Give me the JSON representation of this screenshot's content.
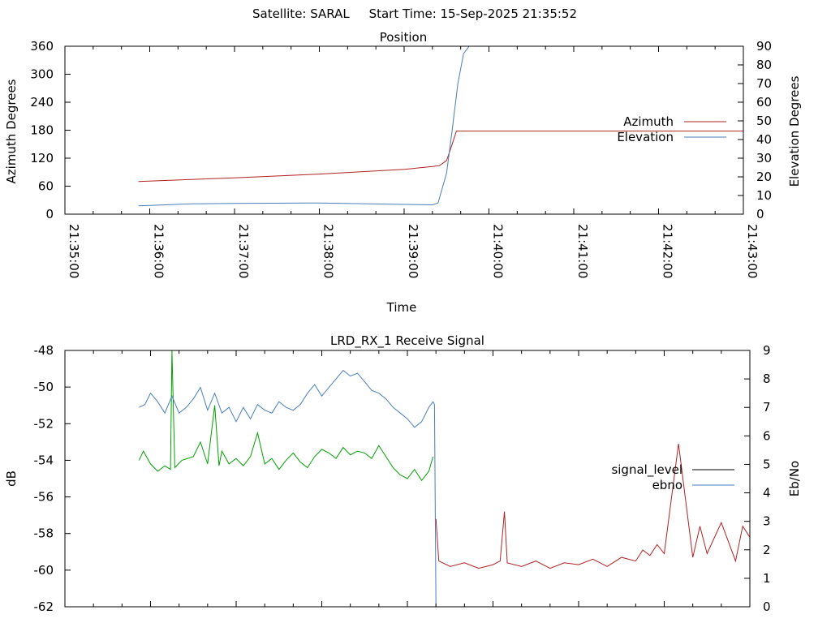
{
  "header": {
    "text": "Satellite: SARAL     Start Time: 15-Sep-2025 21:35:52"
  },
  "chart_data": [
    {
      "type": "line",
      "title": "Position",
      "xlabel": "Time",
      "ylabel": "Azimuth Degrees",
      "y2label": "Elevation Degrees",
      "xlim": [
        "21:35:00",
        "21:43:00"
      ],
      "ylim": [
        0,
        360
      ],
      "y2lim": [
        0,
        90
      ],
      "x_ticks": [
        "21:35:00",
        "21:36:00",
        "21:37:00",
        "21:38:00",
        "21:39:00",
        "21:40:00",
        "21:41:00",
        "21:42:00",
        "21:43:00"
      ],
      "y_ticks": [
        0,
        60,
        120,
        180,
        240,
        300,
        360
      ],
      "y2_ticks": [
        0,
        10,
        20,
        30,
        40,
        50,
        60,
        70,
        80,
        90
      ],
      "legend_position": "right",
      "series": [
        {
          "name": "Azimuth",
          "axis": "left",
          "color": "#b22222",
          "x": [
            "21:35:52",
            "21:37:00",
            "21:38:00",
            "21:39:00",
            "21:39:20",
            "21:39:25",
            "21:39:30",
            "21:39:34",
            "21:39:37",
            "21:43:00"
          ],
          "y": [
            70,
            78,
            86,
            96,
            102,
            104,
            115,
            150,
            178,
            178
          ]
        },
        {
          "name": "Elevation",
          "axis": "right",
          "color": "#4a7ebb",
          "x": [
            "21:35:52",
            "21:36:30",
            "21:37:00",
            "21:38:00",
            "21:38:30",
            "21:39:00",
            "21:39:20",
            "21:39:24",
            "21:39:30",
            "21:39:34",
            "21:39:38",
            "21:39:42",
            "21:39:46"
          ],
          "y": [
            4.5,
            5.5,
            5.8,
            6.0,
            5.6,
            5.2,
            5.0,
            6,
            22,
            45,
            70,
            86,
            90
          ]
        }
      ]
    },
    {
      "type": "line",
      "title": "LRD_RX_1 Receive Signal",
      "xlabel": "",
      "ylabel": "dB",
      "y2label": "Eb/No",
      "xlim": [
        "21:35:00",
        "21:43:00"
      ],
      "ylim": [
        -62,
        -48
      ],
      "y2lim": [
        0,
        9
      ],
      "y_ticks": [
        -62,
        -60,
        -58,
        -56,
        -54,
        -52,
        -50,
        -48
      ],
      "y2_ticks": [
        0,
        1,
        2,
        3,
        4,
        5,
        6,
        7,
        8,
        9
      ],
      "legend_position": "right",
      "series": [
        {
          "name": "signal_level",
          "axis": "left",
          "color": "#00a000",
          "x": [
            "21:35:52",
            "21:35:55",
            "21:36:00",
            "21:36:05",
            "21:36:10",
            "21:36:14",
            "21:36:15",
            "21:36:17",
            "21:36:22",
            "21:36:30",
            "21:36:35",
            "21:36:40",
            "21:36:45",
            "21:36:48",
            "21:36:50",
            "21:36:55",
            "21:37:00",
            "21:37:05",
            "21:37:10",
            "21:37:15",
            "21:37:20",
            "21:37:25",
            "21:37:30",
            "21:37:35",
            "21:37:40",
            "21:37:45",
            "21:37:50",
            "21:37:55",
            "21:38:00",
            "21:38:05",
            "21:38:10",
            "21:38:15",
            "21:38:20",
            "21:38:25",
            "21:38:30",
            "21:38:35",
            "21:38:40",
            "21:38:45",
            "21:38:50",
            "21:38:55",
            "21:39:00",
            "21:39:05",
            "21:39:10",
            "21:39:15",
            "21:39:18"
          ],
          "y": [
            -54.0,
            -53.5,
            -54.2,
            -54.6,
            -54.3,
            -54.5,
            -48.0,
            -54.4,
            -54.0,
            -53.8,
            -53.0,
            -54.2,
            -51.0,
            -54.3,
            -53.5,
            -54.2,
            -53.9,
            -54.3,
            -53.8,
            -52.5,
            -54.2,
            -53.9,
            -54.5,
            -54.0,
            -53.6,
            -54.1,
            -54.4,
            -53.8,
            -53.4,
            -53.6,
            -53.9,
            -53.3,
            -53.7,
            -53.5,
            -53.6,
            -53.9,
            -53.2,
            -53.8,
            -54.4,
            -54.8,
            -55.0,
            -54.5,
            -55.1,
            -54.6,
            -53.8
          ]
        },
        {
          "name": "ebno",
          "axis": "right",
          "color": "#4a7ebb",
          "x": [
            "21:35:52",
            "21:35:56",
            "21:36:00",
            "21:36:05",
            "21:36:10",
            "21:36:15",
            "21:36:20",
            "21:36:25",
            "21:36:30",
            "21:36:35",
            "21:36:40",
            "21:36:45",
            "21:36:50",
            "21:36:55",
            "21:37:00",
            "21:37:05",
            "21:37:10",
            "21:37:15",
            "21:37:20",
            "21:37:25",
            "21:37:30",
            "21:37:35",
            "21:37:40",
            "21:37:45",
            "21:37:50",
            "21:37:55",
            "21:38:00",
            "21:38:05",
            "21:38:10",
            "21:38:15",
            "21:38:20",
            "21:38:25",
            "21:38:30",
            "21:38:35",
            "21:38:40",
            "21:38:45",
            "21:38:50",
            "21:38:55",
            "21:39:00",
            "21:39:05",
            "21:39:10",
            "21:39:15",
            "21:39:18",
            "21:39:19",
            "21:39:20"
          ],
          "y": [
            7.0,
            7.1,
            7.5,
            7.2,
            6.8,
            7.4,
            6.8,
            7.0,
            7.3,
            7.7,
            6.9,
            7.5,
            6.8,
            7.0,
            6.5,
            7.0,
            6.6,
            7.1,
            6.9,
            6.8,
            7.2,
            7.0,
            6.9,
            7.1,
            7.5,
            7.8,
            7.4,
            7.7,
            8.0,
            8.3,
            8.1,
            8.2,
            7.9,
            7.6,
            7.5,
            7.3,
            7.0,
            6.8,
            6.6,
            6.3,
            6.5,
            7.0,
            7.2,
            7.1,
            0.0
          ]
        },
        {
          "name": "",
          "axis": "left",
          "color": "#b22222",
          "x": [
            "21:39:20",
            "21:39:22",
            "21:39:30",
            "21:39:40",
            "21:39:50",
            "21:40:00",
            "21:40:05",
            "21:40:08",
            "21:40:10",
            "21:40:20",
            "21:40:30",
            "21:40:40",
            "21:40:50",
            "21:41:00",
            "21:41:10",
            "21:41:20",
            "21:41:30",
            "21:41:40",
            "21:41:45",
            "21:41:50",
            "21:41:55",
            "21:42:00",
            "21:42:10",
            "21:42:20",
            "21:42:25",
            "21:42:30",
            "21:42:40",
            "21:42:50",
            "21:42:55",
            "21:43:00"
          ],
          "y": [
            -57.2,
            -59.5,
            -59.8,
            -59.6,
            -59.9,
            -59.7,
            -59.5,
            -56.8,
            -59.6,
            -59.8,
            -59.5,
            -59.9,
            -59.6,
            -59.7,
            -59.4,
            -59.8,
            -59.3,
            -59.5,
            -58.9,
            -59.2,
            -58.6,
            -59.1,
            -53.1,
            -59.3,
            -57.6,
            -59.1,
            -57.4,
            -59.5,
            -57.6,
            -58.2
          ]
        }
      ]
    }
  ]
}
